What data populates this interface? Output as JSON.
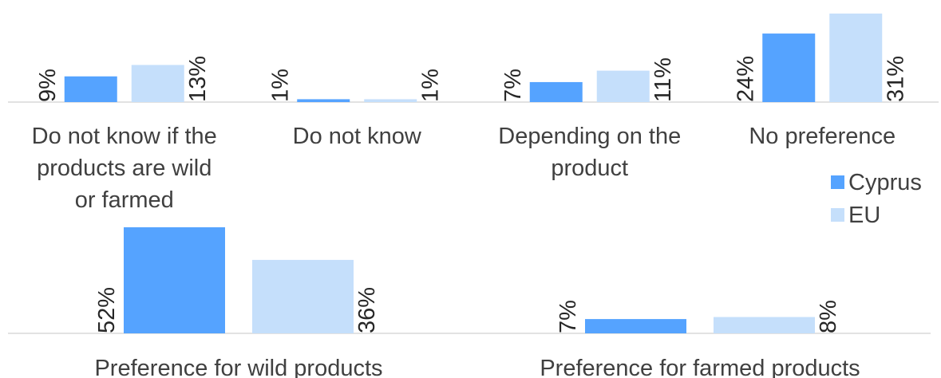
{
  "chart_data": [
    {
      "type": "bar",
      "categories": [
        "Do not know if the products are wild or farmed",
        "Do not know",
        "Depending on the product",
        "No preference"
      ],
      "category_lines": [
        [
          "Do not know if the",
          "products are wild",
          "or farmed"
        ],
        [
          "Do not know"
        ],
        [
          "Depending on the",
          "product"
        ],
        [
          "No preference"
        ]
      ],
      "series": [
        {
          "name": "Cyprus",
          "values": [
            9,
            1,
            7,
            24
          ],
          "labels": [
            "9%",
            "1%",
            "7%",
            "24%"
          ]
        },
        {
          "name": "EU",
          "values": [
            13,
            1,
            11,
            31
          ],
          "labels": [
            "13%",
            "1%",
            "11%",
            "31%"
          ]
        }
      ],
      "unit": "%",
      "ylim": [
        0,
        31
      ]
    },
    {
      "type": "bar",
      "categories": [
        "Preference for wild products",
        "Preference for farmed products"
      ],
      "category_lines": [
        [
          "Preference for wild products"
        ],
        [
          "Preference for farmed products"
        ]
      ],
      "series": [
        {
          "name": "Cyprus",
          "values": [
            52,
            7
          ],
          "labels": [
            "52%",
            "7%"
          ]
        },
        {
          "name": "EU",
          "values": [
            36,
            8
          ],
          "labels": [
            "36%",
            "8%"
          ]
        }
      ],
      "unit": "%",
      "ylim": [
        0,
        52
      ]
    }
  ],
  "legend": {
    "position": "right",
    "items": [
      {
        "name": "Cyprus",
        "color": "#55a3ff"
      },
      {
        "name": "EU",
        "color": "#c5dffb"
      }
    ]
  },
  "colors": {
    "cyprus": "#55a3ff",
    "eu": "#c5dffb",
    "axis": "#d9d9d9"
  }
}
